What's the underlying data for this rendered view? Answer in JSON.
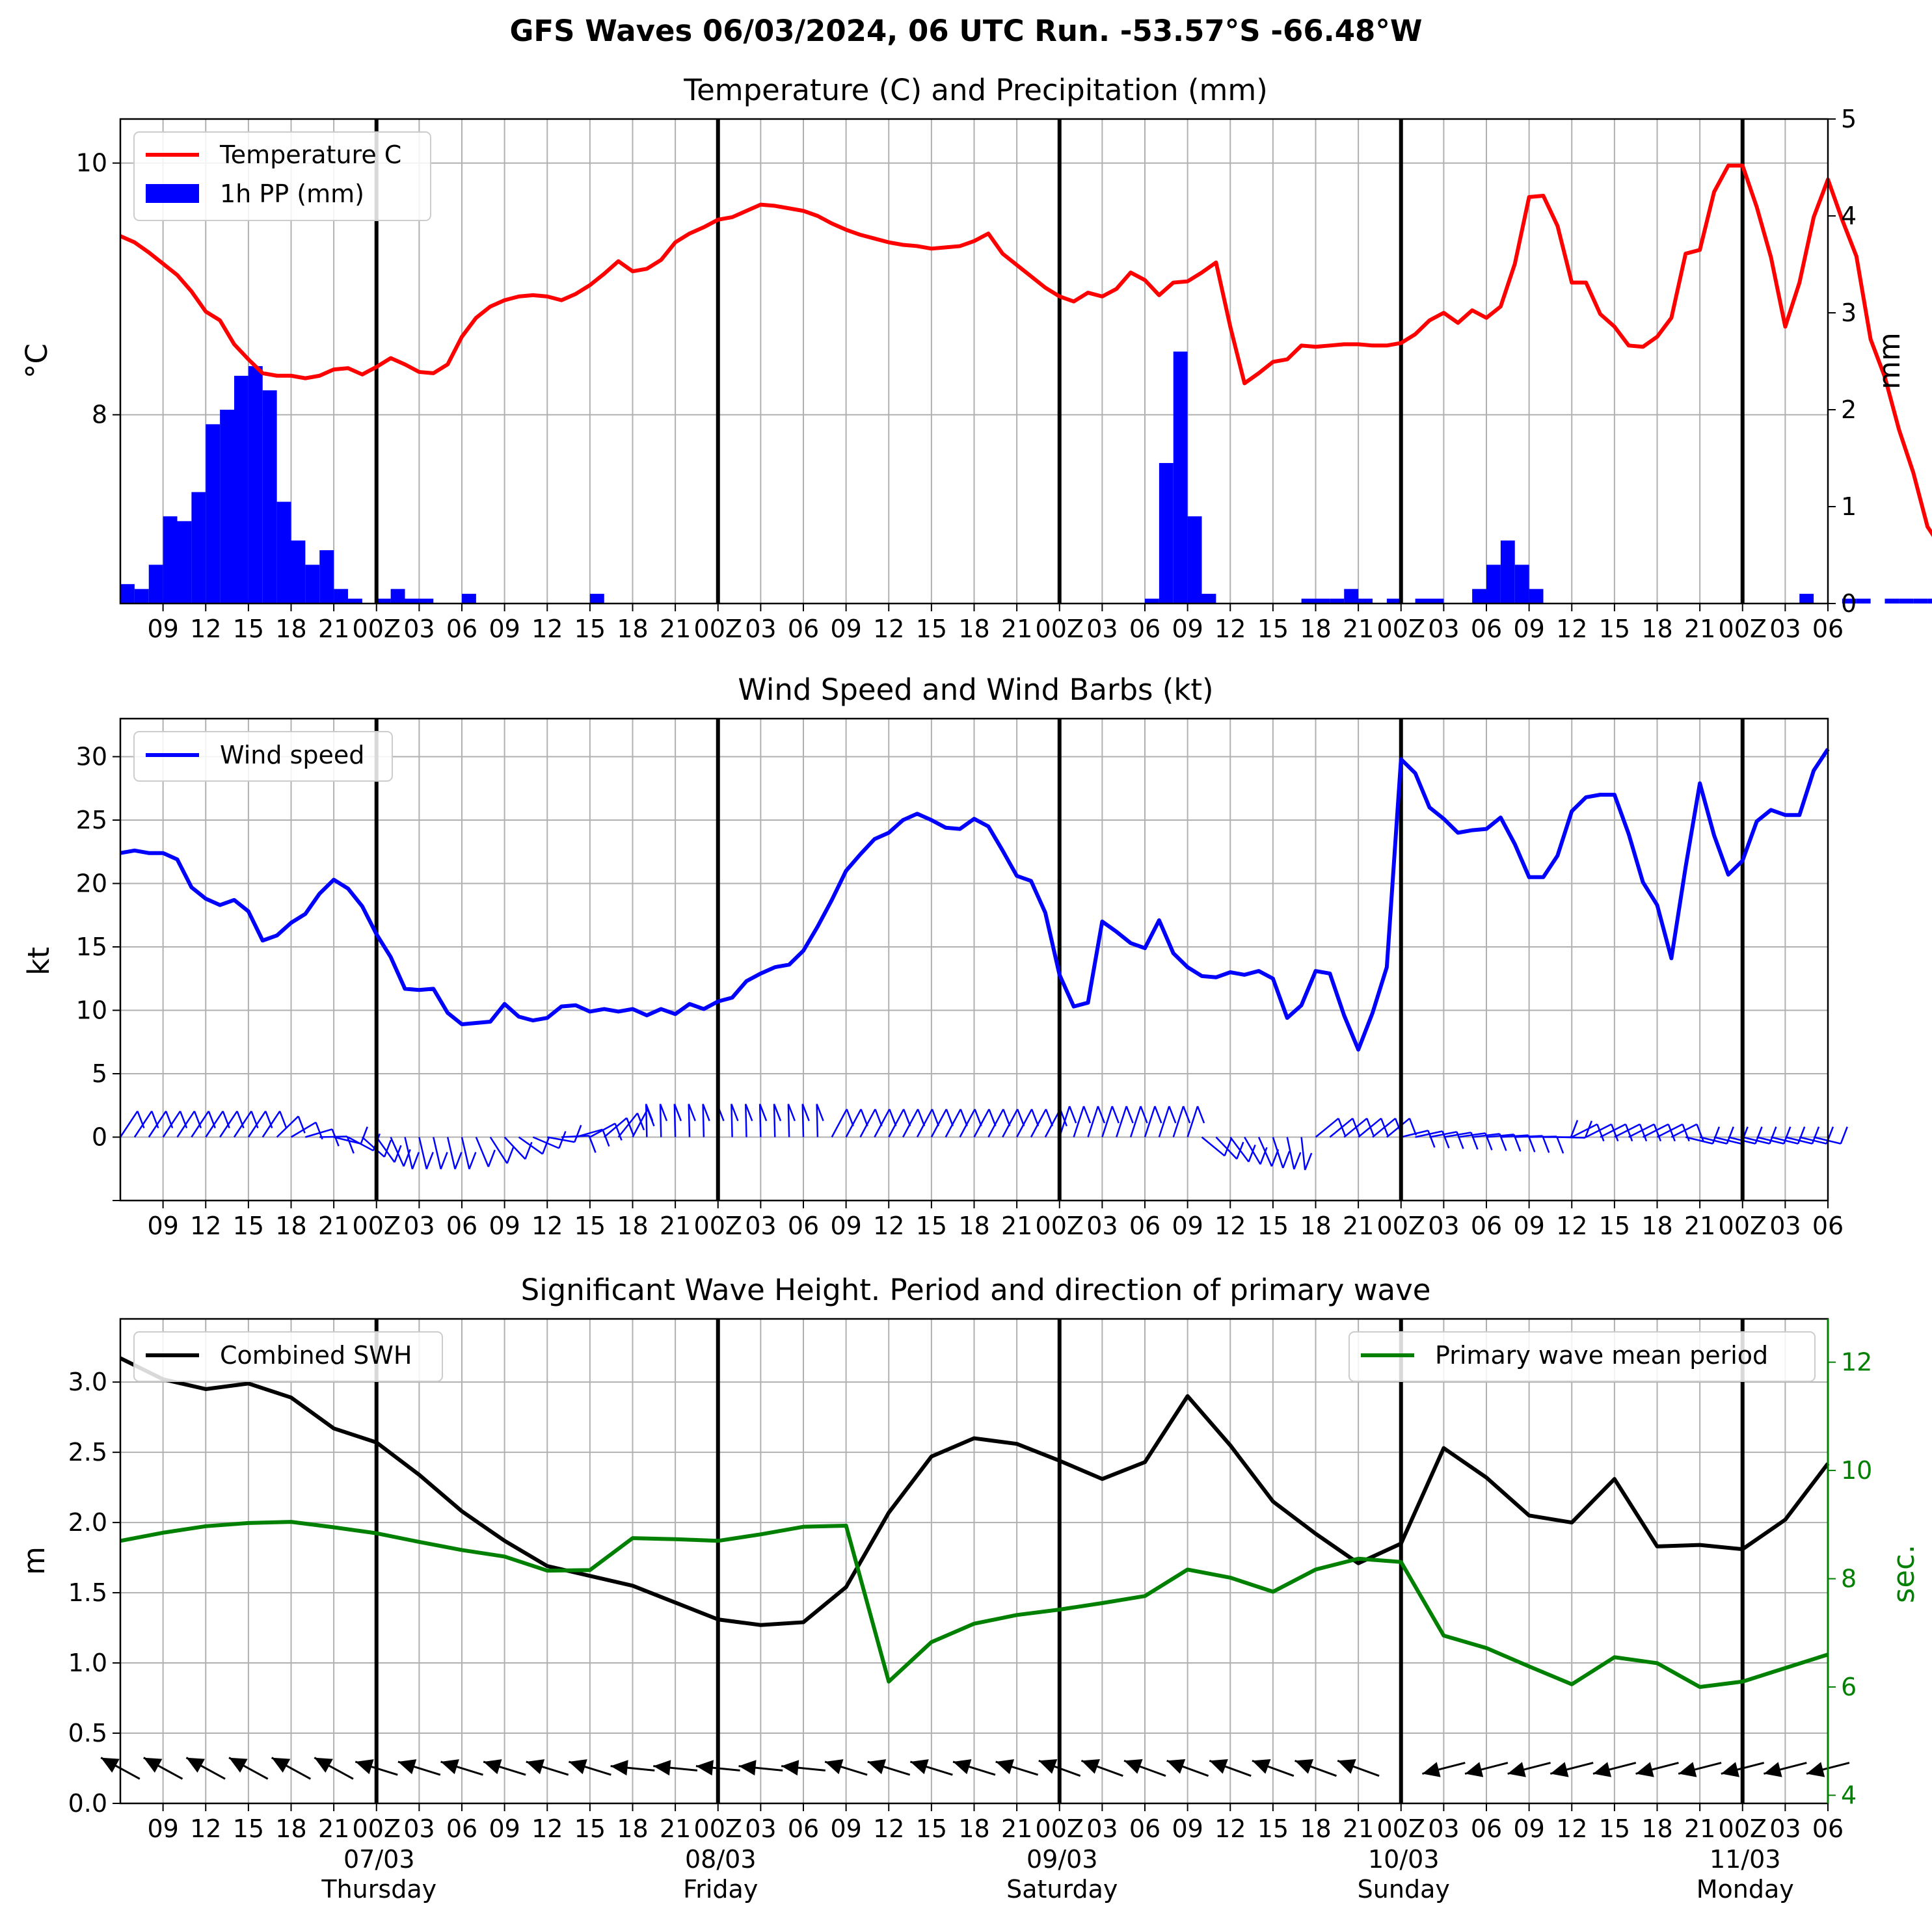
{
  "title": "GFS Waves 06/03/2024, 06 UTC Run. -53.57°S -66.48°W",
  "colors": {
    "temperature": "#ff0000",
    "precip": "#0000ff",
    "wind": "#0000ff",
    "swh": "#000000",
    "period": "#008000",
    "grid": "#b0b0b0"
  },
  "x_axis": {
    "hour_labels": [
      "09",
      "12",
      "15",
      "18",
      "21",
      "00Z",
      "03",
      "06",
      "09",
      "12",
      "15",
      "18",
      "21",
      "00Z",
      "03",
      "06",
      "09",
      "12",
      "15",
      "18",
      "21",
      "00Z",
      "03",
      "06",
      "09",
      "12",
      "15",
      "18",
      "21",
      "00Z",
      "03",
      "06",
      "09",
      "12",
      "15",
      "18",
      "21",
      "00Z",
      "03",
      "06"
    ],
    "days": [
      {
        "date": "07/03",
        "weekday": "Thursday"
      },
      {
        "date": "08/03",
        "weekday": "Friday"
      },
      {
        "date": "09/03",
        "weekday": "Saturday"
      },
      {
        "date": "10/03",
        "weekday": "Sunday"
      },
      {
        "date": "11/03",
        "weekday": "Monday"
      }
    ]
  },
  "chart_data": [
    {
      "type": "line",
      "title": "Temperature (C) and Precipitation (mm)",
      "ylabel": "$^\\circ$C",
      "y2label": "mm",
      "x_unit": "hours since 06/03 06Z",
      "xlim": [
        0,
        120
      ],
      "ylim": [
        6.5,
        10.35
      ],
      "y2lim": [
        0,
        5
      ],
      "yticks": [
        "8",
        "10"
      ],
      "y2ticks": [
        "0",
        "1",
        "2",
        "3",
        "4",
        "5"
      ],
      "legend": "top-left",
      "series": [
        {
          "name": "Temperature C",
          "x_step": 1,
          "values": [
            9.42,
            9.37,
            9.29,
            9.2,
            9.11,
            8.98,
            8.82,
            8.75,
            8.56,
            8.44,
            8.33,
            8.31,
            8.31,
            8.29,
            8.31,
            8.36,
            8.37,
            8.32,
            8.38,
            8.45,
            8.4,
            8.34,
            8.33,
            8.4,
            8.62,
            8.77,
            8.86,
            8.91,
            8.94,
            8.95,
            8.94,
            8.91,
            8.96,
            9.03,
            9.12,
            9.22,
            9.14,
            9.16,
            9.23,
            9.37,
            9.44,
            9.49,
            9.55,
            9.57,
            9.62,
            9.67,
            9.66,
            9.64,
            9.62,
            9.58,
            9.52,
            9.47,
            9.43,
            9.4,
            9.37,
            9.35,
            9.34,
            9.32,
            9.33,
            9.34,
            9.38,
            9.44,
            9.28,
            9.19,
            9.1,
            9.01,
            8.94,
            8.9,
            8.97,
            8.94,
            9.0,
            9.13,
            9.07,
            8.95,
            9.05,
            9.06,
            9.13,
            9.21,
            8.7,
            8.25,
            8.33,
            8.42,
            8.44,
            8.55,
            8.54,
            8.55,
            8.56,
            8.56,
            8.55,
            8.55,
            8.57,
            8.64,
            8.75,
            8.81,
            8.73,
            8.83,
            8.77,
            8.86,
            9.2,
            9.73,
            9.74,
            9.5,
            9.05,
            9.05,
            8.8,
            8.7,
            8.55,
            8.54,
            8.62,
            8.77,
            9.28,
            9.31,
            9.77,
            9.98,
            9.98,
            9.65,
            9.25,
            8.7,
            9.05,
            9.57,
            9.87,
            9.55,
            9.26,
            8.6,
            8.3,
            7.88,
            7.54,
            7.11,
            6.94,
            6.88
          ]
        },
        {
          "name": "1h PP (mm)",
          "x_step": 1,
          "values": [
            0.2,
            0.15,
            0.4,
            0.9,
            0.85,
            1.15,
            1.85,
            2.0,
            2.35,
            2.45,
            2.2,
            1.05,
            0.65,
            0.4,
            0.55,
            0.15,
            0.05,
            0,
            0.05,
            0.15,
            0.05,
            0.05,
            0,
            0,
            0.1,
            0,
            0,
            0,
            0,
            0,
            0,
            0,
            0,
            0.1,
            0,
            0,
            0,
            0,
            0,
            0,
            0,
            0,
            0,
            0,
            0,
            0,
            0,
            0,
            0,
            0,
            0,
            0,
            0,
            0,
            0,
            0,
            0,
            0,
            0,
            0,
            0,
            0,
            0,
            0,
            0,
            0,
            0,
            0,
            0,
            0,
            0,
            0,
            0.05,
            1.45,
            2.6,
            0.9,
            0.1,
            0,
            0,
            0,
            0,
            0,
            0,
            0.05,
            0.05,
            0.05,
            0.15,
            0.05,
            0,
            0.05,
            0,
            0.05,
            0.05,
            0,
            0,
            0.15,
            0.4,
            0.65,
            0.4,
            0.15,
            0,
            0,
            0,
            0,
            0,
            0,
            0,
            0,
            0,
            0,
            0,
            0,
            0,
            0,
            0,
            0,
            0,
            0,
            0.1,
            0,
            0,
            0.05,
            0.05,
            0,
            0.05,
            0.05,
            0.05,
            0.05,
            0.05,
            0,
            0,
            0,
            0,
            0,
            0,
            0
          ]
        }
      ]
    },
    {
      "type": "line",
      "title": "Wind Speed and Wind Barbs (kt)",
      "ylabel": "kt",
      "x_unit": "hours since 06/03 06Z",
      "xlim": [
        0,
        120
      ],
      "ylim": [
        -5,
        33
      ],
      "yticks": [
        "0",
        "5",
        "10",
        "15",
        "20",
        "25",
        "30"
      ],
      "legend": "top-left",
      "series": [
        {
          "name": "Wind speed",
          "x_step": 1,
          "values": [
            22.4,
            22.6,
            22.4,
            22.4,
            21.9,
            19.7,
            18.8,
            18.3,
            18.7,
            17.8,
            15.5,
            15.9,
            16.9,
            17.6,
            19.2,
            20.3,
            19.6,
            18.2,
            16.0,
            14.2,
            11.7,
            11.6,
            11.7,
            9.8,
            8.9,
            9.0,
            9.1,
            10.5,
            9.5,
            9.2,
            9.4,
            10.3,
            10.4,
            9.9,
            10.1,
            9.9,
            10.1,
            9.6,
            10.1,
            9.7,
            10.5,
            10.1,
            10.7,
            11.0,
            12.3,
            12.9,
            13.4,
            13.6,
            14.7,
            16.6,
            18.7,
            21.0,
            22.3,
            23.5,
            24.0,
            25.0,
            25.5,
            25.0,
            24.4,
            24.3,
            25.1,
            24.5,
            22.6,
            20.6,
            20.2,
            17.7,
            12.8,
            10.3,
            10.6,
            17.0,
            16.2,
            15.3,
            14.9,
            17.1,
            14.5,
            13.4,
            12.7,
            12.6,
            13.0,
            12.8,
            13.1,
            12.5,
            9.4,
            10.4,
            13.1,
            12.9,
            9.6,
            6.9,
            9.8,
            13.4,
            29.8,
            28.7,
            26.0,
            25.1,
            24.0,
            24.2,
            24.3,
            25.2,
            23.1,
            20.5,
            20.5,
            22.2,
            25.7,
            26.8,
            27.0,
            27.0,
            23.9,
            20.1,
            18.3,
            14.1,
            21.3,
            27.9,
            23.8,
            20.7,
            21.8,
            24.9,
            25.8,
            25.4,
            25.4,
            28.9,
            30.6
          ]
        }
      ]
    },
    {
      "type": "line",
      "title": "Significant Wave Height. Period and direction of primary wave",
      "ylabel": "m",
      "y2label": "sec.",
      "x_unit": "hours since 06/03 06Z",
      "xlim": [
        0,
        120
      ],
      "ylim": [
        0,
        3.45
      ],
      "y2lim": [
        3.85,
        12.8
      ],
      "yticks": [
        "0.0",
        "0.5",
        "1.0",
        "1.5",
        "2.0",
        "2.5",
        "3.0"
      ],
      "y2ticks": [
        "4",
        "6",
        "8",
        "10",
        "12"
      ],
      "series": [
        {
          "name": "Combined SWH",
          "legend": "top-left",
          "x_step": 3,
          "values": [
            3.17,
            3.02,
            2.95,
            2.99,
            2.89,
            2.67,
            2.57,
            2.34,
            2.08,
            1.87,
            1.69,
            1.62,
            1.55,
            1.43,
            1.31,
            1.27,
            1.29,
            1.54,
            2.07,
            2.47,
            2.6,
            2.56,
            2.44,
            2.31,
            2.43,
            2.9,
            2.55,
            2.15,
            1.92,
            1.71,
            1.85,
            2.53,
            2.32,
            2.05,
            2.0,
            2.31,
            1.83,
            1.84,
            1.81,
            2.02,
            2.42
          ]
        },
        {
          "name": "Primary wave mean period",
          "legend": "top-right",
          "x_step": 3,
          "values": [
            8.7,
            8.85,
            8.97,
            9.03,
            9.05,
            8.95,
            8.84,
            8.68,
            8.53,
            8.41,
            8.15,
            8.16,
            8.75,
            8.73,
            8.7,
            8.82,
            8.96,
            8.98,
            6.1,
            6.83,
            7.17,
            7.33,
            7.43,
            7.55,
            7.68,
            8.17,
            8.02,
            7.76,
            8.17,
            8.37,
            8.31,
            6.95,
            6.72,
            6.38,
            6.05,
            6.55,
            6.44,
            6.0,
            6.1,
            6.35,
            6.6
          ]
        }
      ]
    }
  ]
}
